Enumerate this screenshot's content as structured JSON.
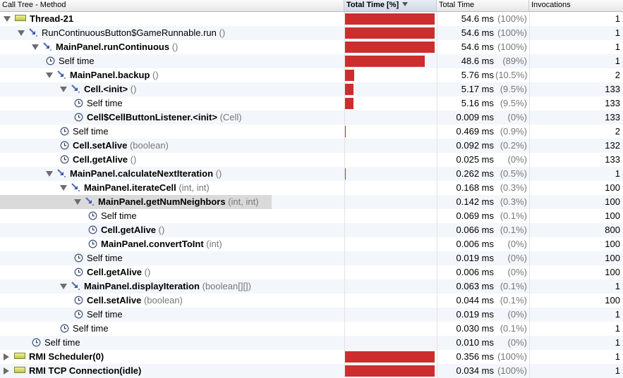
{
  "header": {
    "col_method": "Call Tree - Method",
    "col_total_pct": "Total Time [%]",
    "col_total_time": "Total Time",
    "col_invocations": "Invocations"
  },
  "colors": {
    "bar": "#cc2e2e",
    "highlight": "#dadada",
    "stripe": "#f3f6fa"
  },
  "rows": [
    {
      "indent": 0,
      "toggle": "open",
      "icon": "thread-icon",
      "bold": "Thread-21",
      "args": "",
      "ms": "54.6 ms",
      "pct": "(100%)",
      "inv": "1",
      "fraction": 1.0
    },
    {
      "indent": 1,
      "toggle": "open",
      "icon": "method-icon",
      "bold": "",
      "plain": "RunContinuousButton$GameRunnable.run",
      "args": "()",
      "ms": "54.6 ms",
      "pct": "(100%)",
      "inv": "1",
      "fraction": 1.0
    },
    {
      "indent": 2,
      "toggle": "open",
      "icon": "method-icon",
      "bold": "MainPanel.runContinuous",
      "args": "()",
      "ms": "54.6 ms",
      "pct": "(100%)",
      "inv": "1",
      "fraction": 1.0
    },
    {
      "indent": 3,
      "toggle": "none",
      "icon": "clock-icon",
      "bold": "",
      "plain": "Self time",
      "args": "",
      "ms": "48.6 ms",
      "pct": "(89%)",
      "inv": "1",
      "fraction": 0.89
    },
    {
      "indent": 3,
      "toggle": "open",
      "icon": "method-icon",
      "bold": "MainPanel.backup",
      "args": "()",
      "ms": "5.76 ms",
      "pct": "(10.5%)",
      "inv": "2",
      "fraction": 0.105
    },
    {
      "indent": 4,
      "toggle": "open",
      "icon": "method-icon",
      "bold": "Cell.<init>",
      "args": "()",
      "ms": "5.17 ms",
      "pct": "(9.5%)",
      "inv": "133",
      "fraction": 0.095
    },
    {
      "indent": 5,
      "toggle": "none",
      "icon": "clock-icon",
      "bold": "",
      "plain": "Self time",
      "args": "",
      "ms": "5.16 ms",
      "pct": "(9.5%)",
      "inv": "133",
      "fraction": 0.095
    },
    {
      "indent": 5,
      "toggle": "none",
      "icon": "clock-icon",
      "bold": "Cell$CellButtonListener.<init>",
      "args": "(Cell)",
      "ms": "0.009 ms",
      "pct": "(0%)",
      "inv": "133",
      "fraction": 0.0
    },
    {
      "indent": 4,
      "toggle": "none",
      "icon": "clock-icon",
      "bold": "",
      "plain": "Self time",
      "args": "",
      "ms": "0.469 ms",
      "pct": "(0.9%)",
      "inv": "2",
      "fraction": 0.009
    },
    {
      "indent": 4,
      "toggle": "none",
      "icon": "clock-icon",
      "bold": "Cell.setAlive",
      "args": "(boolean)",
      "ms": "0.092 ms",
      "pct": "(0.2%)",
      "inv": "132",
      "fraction": 0.0
    },
    {
      "indent": 4,
      "toggle": "none",
      "icon": "clock-icon",
      "bold": "Cell.getAlive",
      "args": "()",
      "ms": "0.025 ms",
      "pct": "(0%)",
      "inv": "133",
      "fraction": 0.0
    },
    {
      "indent": 3,
      "toggle": "open",
      "icon": "method-icon",
      "bold": "MainPanel.calculateNextIteration",
      "args": "()",
      "ms": "0.262 ms",
      "pct": "(0.5%)",
      "inv": "1",
      "fraction": 0.005
    },
    {
      "indent": 4,
      "toggle": "open",
      "icon": "method-icon",
      "bold": "MainPanel.iterateCell",
      "args": "(int, int)",
      "ms": "0.168 ms",
      "pct": "(0.3%)",
      "inv": "100",
      "fraction": 0.0
    },
    {
      "indent": 5,
      "toggle": "open",
      "icon": "method-icon",
      "bold": "MainPanel.getNumNeighbors",
      "args": "(int, int)",
      "ms": "0.142 ms",
      "pct": "(0.3%)",
      "inv": "100",
      "fraction": 0.0,
      "highlight": true
    },
    {
      "indent": 6,
      "toggle": "none",
      "icon": "clock-icon",
      "bold": "",
      "plain": "Self time",
      "args": "",
      "ms": "0.069 ms",
      "pct": "(0.1%)",
      "inv": "100",
      "fraction": 0.0
    },
    {
      "indent": 6,
      "toggle": "none",
      "icon": "clock-icon",
      "bold": "Cell.getAlive",
      "args": "()",
      "ms": "0.066 ms",
      "pct": "(0.1%)",
      "inv": "800",
      "fraction": 0.0
    },
    {
      "indent": 6,
      "toggle": "none",
      "icon": "clock-icon",
      "bold": "MainPanel.convertToInt",
      "args": "(int)",
      "ms": "0.006 ms",
      "pct": "(0%)",
      "inv": "100",
      "fraction": 0.0
    },
    {
      "indent": 5,
      "toggle": "none",
      "icon": "clock-icon",
      "bold": "",
      "plain": "Self time",
      "args": "",
      "ms": "0.019 ms",
      "pct": "(0%)",
      "inv": "100",
      "fraction": 0.0
    },
    {
      "indent": 5,
      "toggle": "none",
      "icon": "clock-icon",
      "bold": "Cell.getAlive",
      "args": "()",
      "ms": "0.006 ms",
      "pct": "(0%)",
      "inv": "100",
      "fraction": 0.0
    },
    {
      "indent": 4,
      "toggle": "open",
      "icon": "method-icon",
      "bold": "MainPanel.displayIteration",
      "args": "(boolean[][])",
      "ms": "0.063 ms",
      "pct": "(0.1%)",
      "inv": "1",
      "fraction": 0.0
    },
    {
      "indent": 5,
      "toggle": "none",
      "icon": "clock-icon",
      "bold": "Cell.setAlive",
      "args": "(boolean)",
      "ms": "0.044 ms",
      "pct": "(0.1%)",
      "inv": "100",
      "fraction": 0.0
    },
    {
      "indent": 5,
      "toggle": "none",
      "icon": "clock-icon",
      "bold": "",
      "plain": "Self time",
      "args": "",
      "ms": "0.019 ms",
      "pct": "(0%)",
      "inv": "1",
      "fraction": 0.0
    },
    {
      "indent": 4,
      "toggle": "none",
      "icon": "clock-icon",
      "bold": "",
      "plain": "Self time",
      "args": "",
      "ms": "0.030 ms",
      "pct": "(0.1%)",
      "inv": "1",
      "fraction": 0.0
    },
    {
      "indent": 2,
      "toggle": "none",
      "icon": "clock-icon",
      "bold": "",
      "plain": "Self time",
      "args": "",
      "ms": "0.010 ms",
      "pct": "(0%)",
      "inv": "1",
      "fraction": 0.0
    },
    {
      "indent": 0,
      "toggle": "closed",
      "icon": "thread-icon",
      "bold": "RMI Scheduler(0)",
      "args": "",
      "ms": "0.356 ms",
      "pct": "(100%)",
      "inv": "1",
      "fraction": 1.0
    },
    {
      "indent": 0,
      "toggle": "closed",
      "icon": "thread-icon",
      "bold": "RMI TCP Connection(idle)",
      "args": "",
      "ms": "0.034 ms",
      "pct": "(100%)",
      "inv": "1",
      "fraction": 1.0
    }
  ]
}
